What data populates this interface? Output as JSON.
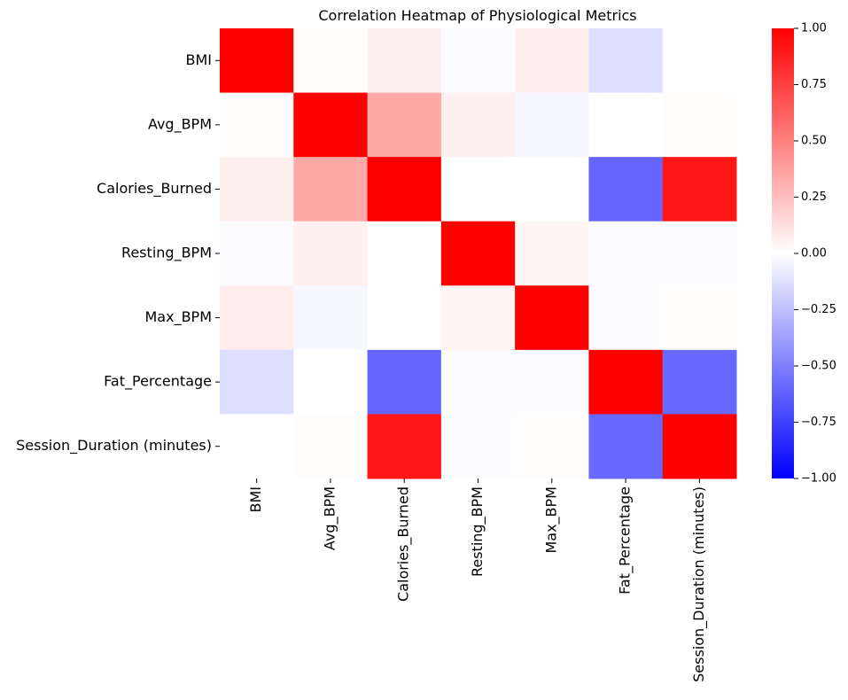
{
  "chart_data": {
    "type": "heatmap",
    "title": "Correlation Heatmap of Physiological Metrics",
    "xlabel": "",
    "ylabel": "",
    "row_labels": [
      "BMI",
      "Avg_BPM",
      "Calories_Burned",
      "Resting_BPM",
      "Max_BPM",
      "Fat_Percentage",
      "Session_Duration (minutes)"
    ],
    "col_labels": [
      "BMI",
      "Avg_BPM",
      "Calories_Burned",
      "Resting_BPM",
      "Max_BPM",
      "Fat_Percentage",
      "Session_Duration (minutes)"
    ],
    "values": [
      [
        1.0,
        0.01,
        0.06,
        -0.02,
        0.07,
        -0.13,
        0.0
      ],
      [
        0.01,
        1.0,
        0.34,
        0.06,
        -0.03,
        0.0,
        0.01
      ],
      [
        0.06,
        0.34,
        1.0,
        0.0,
        0.0,
        -0.6,
        0.91
      ],
      [
        -0.02,
        0.06,
        0.0,
        1.0,
        0.04,
        -0.01,
        -0.01
      ],
      [
        0.07,
        -0.03,
        0.0,
        0.04,
        1.0,
        -0.01,
        0.01
      ],
      [
        -0.13,
        0.0,
        -0.6,
        -0.01,
        -0.01,
        1.0,
        -0.59
      ],
      [
        0.0,
        0.01,
        0.91,
        -0.01,
        0.01,
        -0.59,
        1.0
      ]
    ],
    "vmin": -1.0,
    "vmax": 1.0,
    "colormap": "bwr",
    "colors": {
      "low": "#0000ff",
      "mid": "#ffffff",
      "high": "#ff0000"
    },
    "colorbar_ticks": [
      "1.00",
      "0.75",
      "0.50",
      "0.25",
      "0.00",
      "−0.25",
      "−0.50",
      "−0.75",
      "−1.00"
    ],
    "colorbar_tick_values": [
      1.0,
      0.75,
      0.5,
      0.25,
      0.0,
      -0.25,
      -0.5,
      -0.75,
      -1.0
    ],
    "grid": false
  }
}
